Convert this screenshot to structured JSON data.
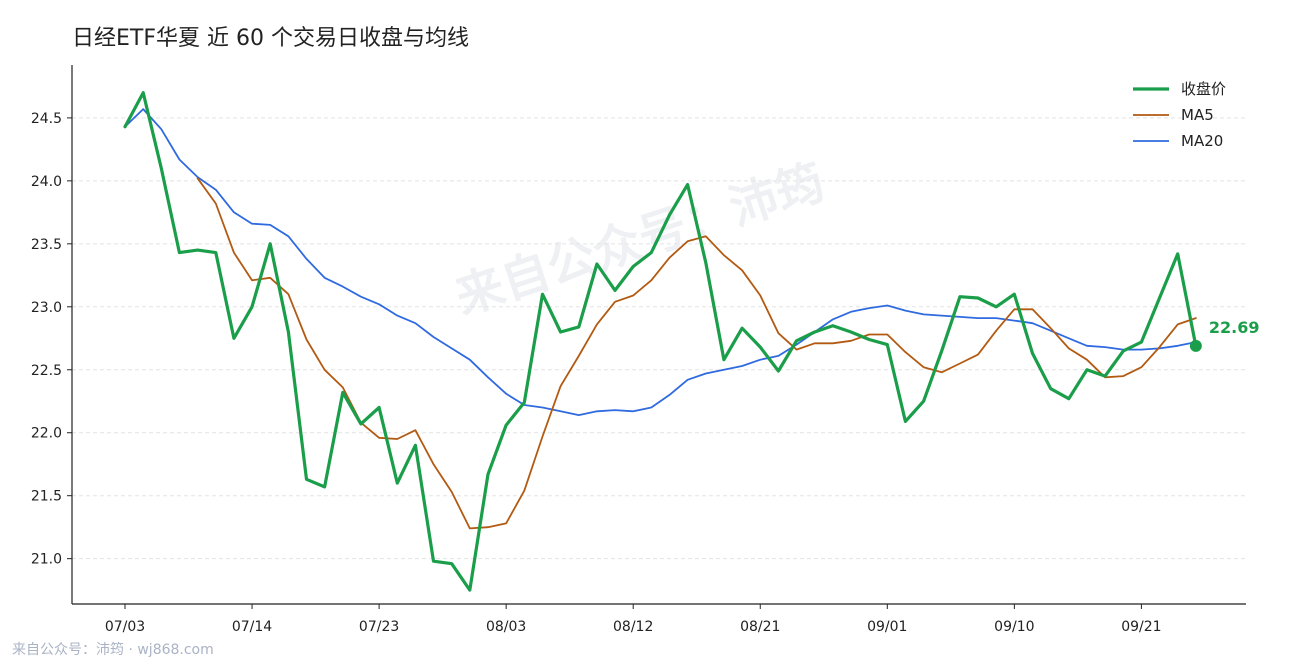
{
  "title": "日经ETF华夏 近 60 个交易日收盘与均线",
  "footer": "来自公众号：沛筠 · wj868.com",
  "watermark": "来自公众号：沛筠",
  "colors": {
    "close": "#1a9e4a",
    "ma5": "#b35a12",
    "ma20": "#2f6ae0",
    "grid": "#e3e3e3"
  },
  "chart_data": {
    "type": "line",
    "title": "日经ETF华夏 近 60 个交易日收盘与均线",
    "xlabel": "",
    "ylabel": "",
    "ylim": [
      20.64,
      24.92
    ],
    "yticks": [
      "21.0",
      "21.5",
      "22.0",
      "22.5",
      "23.0",
      "23.5",
      "24.0",
      "24.5"
    ],
    "ytick_values": [
      21.0,
      21.5,
      22.0,
      22.5,
      23.0,
      23.5,
      24.0,
      24.5
    ],
    "xticks": [
      {
        "index": 0,
        "label": "07/03"
      },
      {
        "index": 7,
        "label": "07/14"
      },
      {
        "index": 14,
        "label": "07/23"
      },
      {
        "index": 21,
        "label": "08/03"
      },
      {
        "index": 28,
        "label": "08/12"
      },
      {
        "index": 35,
        "label": "08/21"
      },
      {
        "index": 42,
        "label": "09/01"
      },
      {
        "index": 49,
        "label": "09/10"
      },
      {
        "index": 56,
        "label": "09/21"
      }
    ],
    "grid": "horizontal",
    "legend": "top-right",
    "series": [
      {
        "name": "收盘价",
        "values": [
          24.43,
          24.7,
          24.1,
          23.43,
          23.45,
          23.43,
          22.75,
          23.0,
          23.5,
          22.8,
          21.63,
          21.57,
          22.32,
          22.07,
          22.2,
          21.6,
          21.9,
          20.98,
          20.96,
          20.75,
          21.67,
          22.06,
          22.24,
          23.1,
          22.8,
          22.84,
          23.34,
          23.13,
          23.32,
          23.43,
          23.73,
          23.97,
          23.35,
          22.58,
          22.83,
          22.68,
          22.49,
          22.73,
          22.8,
          22.85,
          22.8,
          22.74,
          22.7,
          22.09,
          22.25,
          22.65,
          23.08,
          23.07,
          23.0,
          23.1,
          22.63,
          22.35,
          22.27,
          22.5,
          22.45,
          22.65,
          22.72,
          23.07,
          23.42,
          22.69
        ]
      },
      {
        "name": "MA5",
        "values": [
          null,
          null,
          null,
          null,
          24.02,
          23.82,
          23.43,
          23.21,
          23.23,
          23.1,
          22.74,
          22.5,
          22.36,
          22.08,
          21.96,
          21.95,
          22.02,
          21.75,
          21.53,
          21.24,
          21.25,
          21.28,
          21.54,
          21.97,
          22.37,
          22.61,
          22.86,
          23.04,
          23.09,
          23.21,
          23.39,
          23.52,
          23.56,
          23.41,
          23.29,
          23.09,
          22.79,
          22.66,
          22.71,
          22.71,
          22.73,
          22.78,
          22.78,
          22.64,
          22.52,
          22.48,
          22.55,
          22.62,
          22.81,
          22.98,
          22.98,
          22.83,
          22.67,
          22.58,
          22.44,
          22.45,
          22.52,
          22.68,
          22.86,
          22.91
        ]
      },
      {
        "name": "MA20",
        "values": [
          24.43,
          24.57,
          24.41,
          24.17,
          24.03,
          23.93,
          23.75,
          23.66,
          23.65,
          23.56,
          23.38,
          23.23,
          23.16,
          23.08,
          23.02,
          22.93,
          22.87,
          22.76,
          22.67,
          22.58,
          22.44,
          22.31,
          22.22,
          22.2,
          22.17,
          22.14,
          22.17,
          22.18,
          22.17,
          22.2,
          22.3,
          22.42,
          22.47,
          22.5,
          22.53,
          22.58,
          22.61,
          22.7,
          22.8,
          22.9,
          22.96,
          22.99,
          23.01,
          22.97,
          22.94,
          22.93,
          22.92,
          22.91,
          22.91,
          22.89,
          22.87,
          22.81,
          22.75,
          22.69,
          22.68,
          22.66,
          22.66,
          22.67,
          22.69,
          22.72
        ]
      }
    ],
    "last_value_label": "22.69"
  }
}
